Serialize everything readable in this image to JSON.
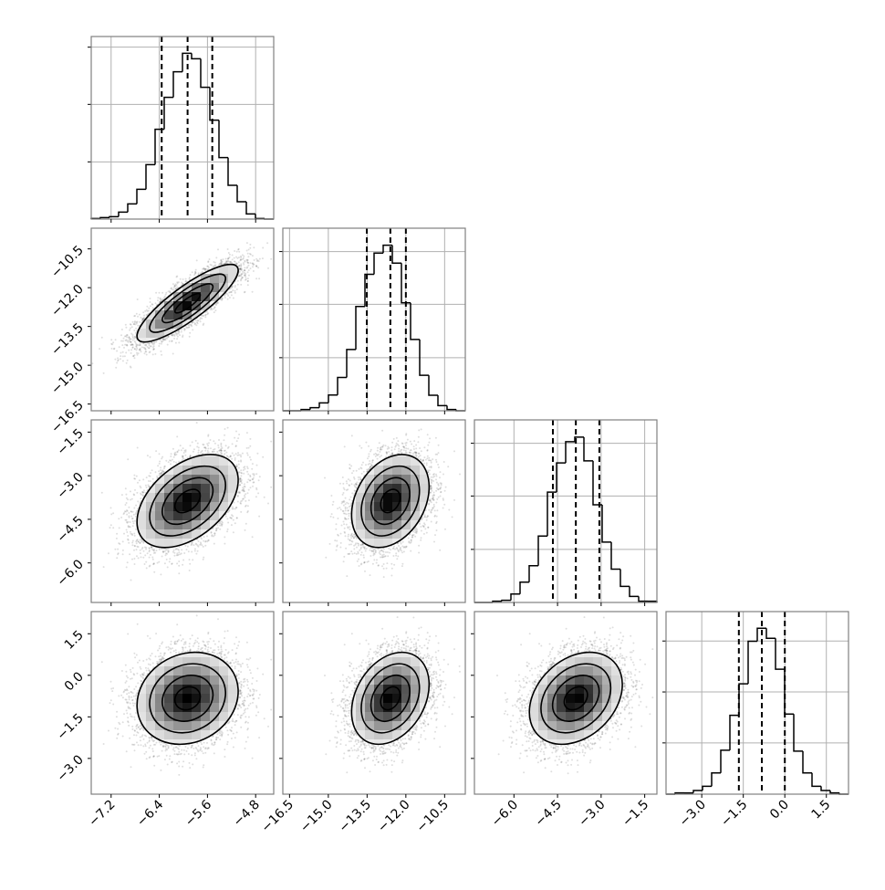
{
  "chart_data": {
    "type": "corner",
    "title": "",
    "params": [
      {
        "range": [
          -7.53,
          -4.5
        ],
        "ticks": [
          "-7.2",
          "-6.4",
          "-5.6",
          "-4.8"
        ],
        "tick_values": [
          -7.2,
          -6.4,
          -5.6,
          -4.8
        ],
        "mean": -5.93,
        "sd": 0.42,
        "quantiles": [
          -6.36,
          -5.93,
          -5.52
        ],
        "hist_counts": [
          2,
          5,
          8,
          23,
          50,
          98,
          179,
          295,
          400,
          484,
          545,
          527,
          433,
          325,
          202,
          111,
          57,
          17,
          2,
          0
        ],
        "hist_ymax": 600,
        "hist_yticks": [
          188,
          377,
          565
        ]
      },
      {
        "range": [
          -16.76,
          -9.7
        ],
        "ticks": [
          "-16.5",
          "-15.0",
          "-13.5",
          "-12.0",
          "-10.5"
        ],
        "tick_values": [
          -16.5,
          -15.0,
          -13.5,
          -12.0,
          -10.5
        ],
        "mean": -12.6,
        "sd": 0.75,
        "quantiles": [
          -13.51,
          -12.6,
          -12.0
        ],
        "hist_counts": [
          0,
          0,
          4,
          10,
          26,
          52,
          110,
          202,
          344,
          450,
          520,
          546,
          487,
          356,
          235,
          117,
          51,
          17,
          4,
          0
        ],
        "hist_ymax": 602,
        "hist_yticks": [
          175,
          351,
          525
        ]
      },
      {
        "range": [
          -7.36,
          -1.08
        ],
        "ticks": [
          "-6.0",
          "-4.5",
          "-3.0",
          "-1.5"
        ],
        "tick_values": [
          -6.0,
          -4.5,
          -3.0,
          -1.5
        ],
        "mean": -3.87,
        "sd": 0.8,
        "quantiles": [
          -4.66,
          -3.87,
          -3.06
        ],
        "hist_counts": [
          0,
          0,
          4,
          7,
          28,
          67,
          121,
          219,
          364,
          460,
          530,
          545,
          467,
          322,
          199,
          110,
          53,
          20,
          4,
          4
        ],
        "hist_ymax": 602,
        "hist_yticks": [
          175,
          351,
          525
        ]
      },
      {
        "range": [
          -4.29,
          2.3
        ],
        "ticks": [
          "-3.0",
          "-1.5",
          "0.0",
          "1.5"
        ],
        "tick_values": [
          -3.0,
          -1.5,
          0.0,
          1.5
        ],
        "mean": -0.83,
        "sd": 0.83,
        "quantiles": [
          -1.66,
          -0.83,
          0.0
        ],
        "hist_counts": [
          0,
          4,
          4,
          12,
          26,
          70,
          145,
          260,
          364,
          504,
          547,
          514,
          412,
          264,
          142,
          70,
          26,
          12,
          4,
          0
        ],
        "hist_ymax": 602,
        "hist_yticks": [
          169,
          337,
          505
        ]
      }
    ],
    "correlations": {
      "1-0": 0.85,
      "2-0": 0.45,
      "2-1": 0.3,
      "3-0": 0.15,
      "3-1": 0.3,
      "3-2": 0.3
    },
    "contour_levels_sigma": [
      0.5,
      1.0,
      1.5,
      2.0
    ],
    "colors": {
      "line": "#000000",
      "frame": "#808080",
      "grid": "#b0b0b0",
      "points": "#000000"
    }
  }
}
